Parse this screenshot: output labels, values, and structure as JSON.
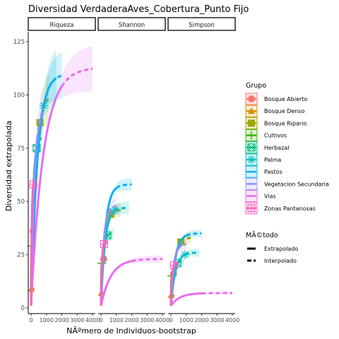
{
  "chart_data": {
    "type": "line",
    "title": "Diversidad VerdaderaAves_Cobertura_Punto Fijo",
    "xlabel": "NÃºmero de Individuos-bootstrap",
    "ylabel": "Diversidad extrapolada",
    "xlim": [
      0,
      4000
    ],
    "ylim": [
      0,
      125
    ],
    "x_ticks": [
      0,
      1000,
      2000,
      3000,
      4000
    ],
    "y_ticks": [
      0,
      25,
      50,
      75,
      100,
      125
    ],
    "facets": [
      "Riqueza",
      "Shannon",
      "Simpson"
    ],
    "grid": false,
    "legend_position": "right",
    "legend_group_title": "Grupo",
    "legend_method_title": "MÃ©todo",
    "methods": [
      "Extrapolado",
      "Interpolado"
    ],
    "series": [
      {
        "name": "Bosque Abierto",
        "color": "#F8766D",
        "shape": "circle",
        "observed": [
          [
            130,
            36
          ],
          [
            180,
            23
          ],
          [
            170,
            16
          ]
        ],
        "asymptote": [
          36,
          23,
          16
        ]
      },
      {
        "name": "Bosque Denso",
        "color": "#D89000",
        "shape": "triangle",
        "observed": [
          [
            20,
            9
          ],
          [
            25,
            7
          ],
          [
            25,
            6
          ]
        ],
        "asymptote": [
          9,
          7,
          6
        ]
      },
      {
        "name": "Bosque Ripario",
        "color": "#A3A500",
        "shape": "square",
        "observed": [
          [
            580,
            87
          ],
          [
            640,
            44
          ],
          [
            650,
            31
          ]
        ],
        "asymptote": [
          100,
          46,
          33
        ]
      },
      {
        "name": "Cultivos",
        "color": "#39B600",
        "shape": "plus",
        "observed": [
          [
            40,
            29
          ],
          [
            50,
            21
          ],
          [
            50,
            15
          ]
        ],
        "asymptote": [
          30,
          22,
          15
        ]
      },
      {
        "name": "Herbazal",
        "color": "#00BF7D",
        "shape": "square-x",
        "observed": [
          [
            360,
            75
          ],
          [
            420,
            34
          ],
          [
            430,
            21
          ]
        ],
        "asymptote": [
          80,
          35,
          22
        ]
      },
      {
        "name": "Palma",
        "color": "#00BFC4",
        "shape": "asterisk",
        "observed": [
          [
            820,
            95
          ],
          [
            900,
            46
          ],
          [
            920,
            25
          ]
        ],
        "asymptote": [
          110,
          47,
          26
        ]
      },
      {
        "name": "Pastos",
        "color": "#00B0F6",
        "shape": "none",
        "observed": [
          [
            1000,
            100
          ],
          [
            1000,
            58
          ],
          [
            1000,
            35
          ]
        ],
        "asymptote": [
          110,
          58,
          35
        ]
      },
      {
        "name": "Vegetacion Secundaria",
        "color": "#9590FF",
        "shape": "none",
        "observed": [
          [
            400,
            80
          ],
          [
            500,
            45
          ],
          [
            500,
            28
          ]
        ],
        "asymptote": [
          95,
          48,
          30
        ]
      },
      {
        "name": "Vias",
        "color": "#E76BF3",
        "shape": "none",
        "observed": [
          [
            2000,
            104
          ],
          [
            2000,
            22
          ],
          [
            2000,
            7
          ]
        ],
        "asymptote": [
          113,
          23,
          7
        ]
      },
      {
        "name": "Zonas Pantanosas",
        "color": "#FF62BC",
        "shape": "square-grid",
        "observed": [
          [
            150,
            58
          ],
          [
            200,
            30
          ],
          [
            200,
            20
          ]
        ],
        "asymptote": [
          60,
          31,
          21
        ]
      }
    ]
  }
}
